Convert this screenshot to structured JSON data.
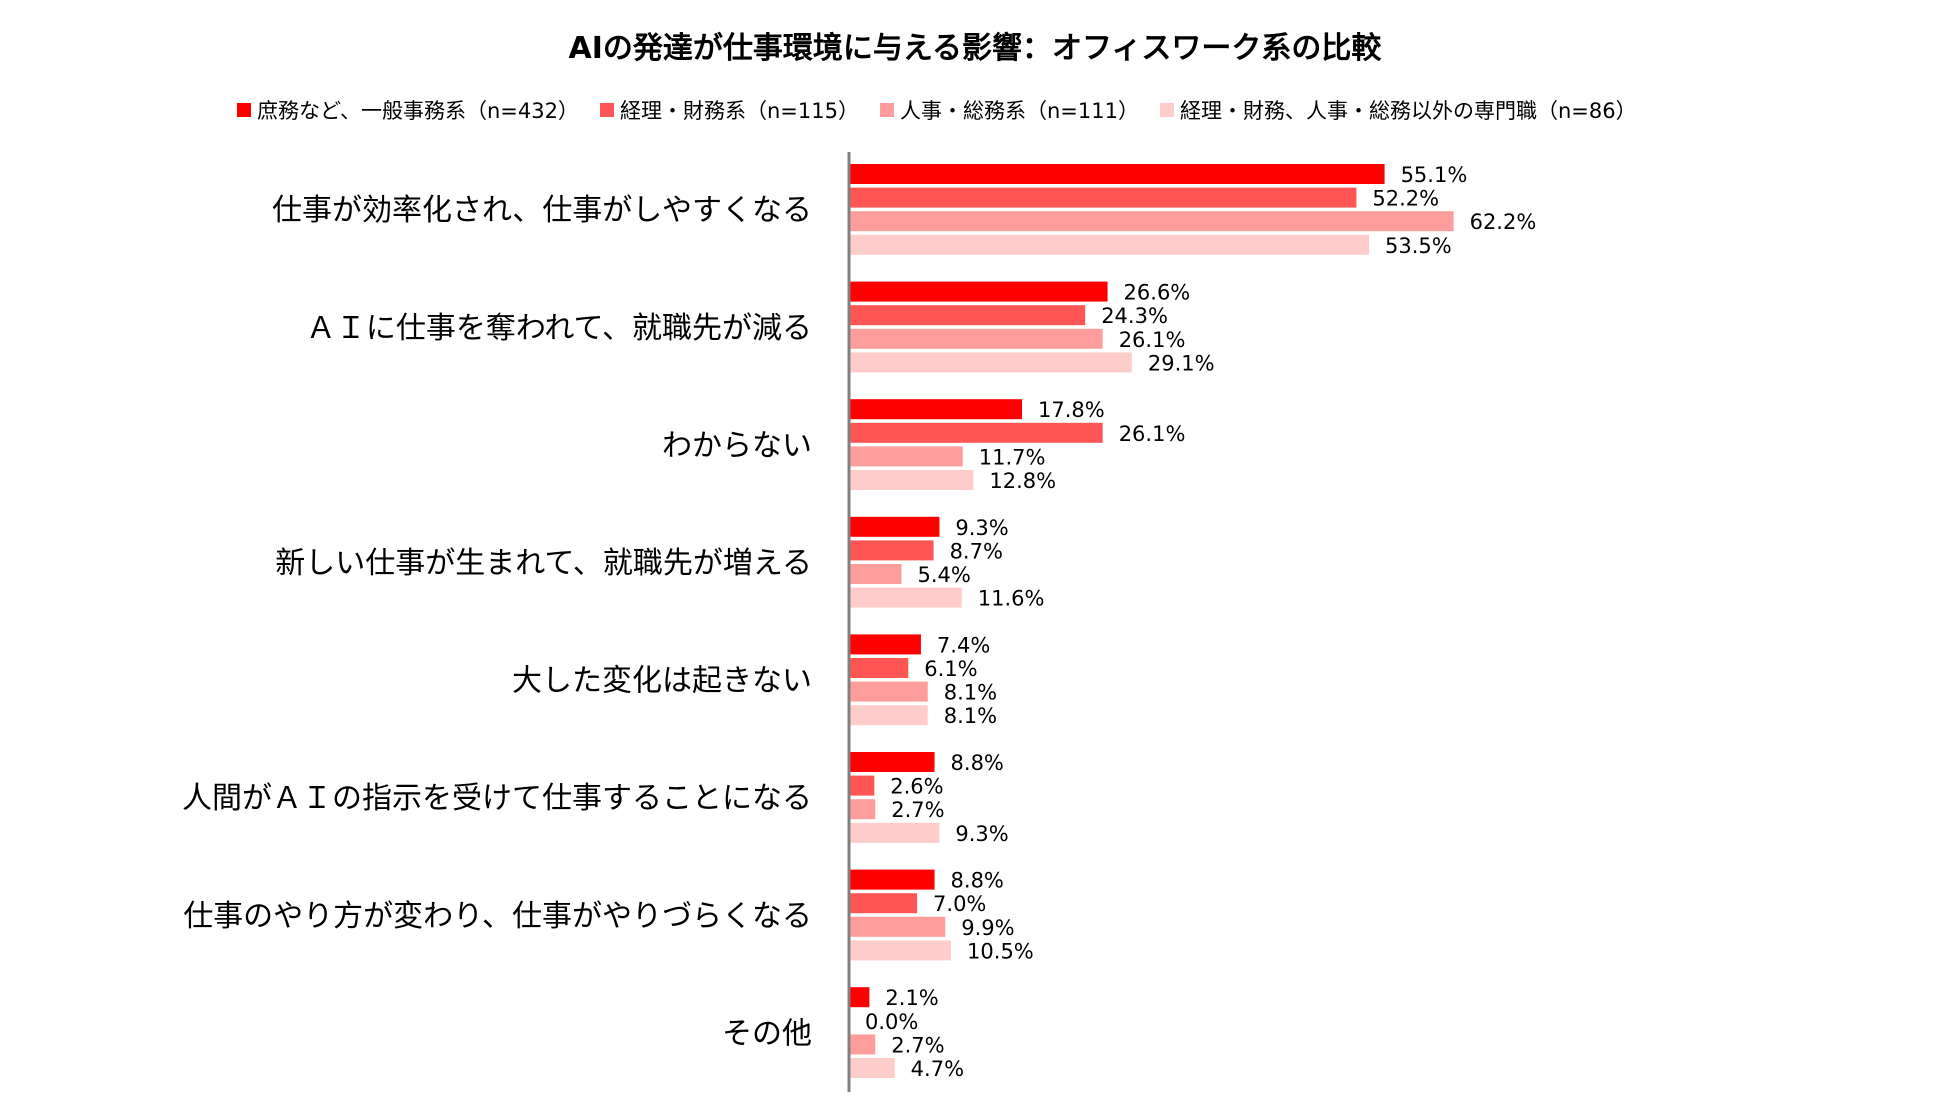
{
  "chart_data": {
    "type": "bar",
    "orientation": "horizontal",
    "title": "AIの発達が仕事環境に与える影響：オフィスワーク系の比較",
    "xlim": [
      0,
      70
    ],
    "grid": false,
    "legend_position": "top",
    "categories": [
      "仕事が効率化され、仕事がしやすくなる",
      "ＡＩに仕事を奪われて、就職先が減る",
      "わからない",
      "新しい仕事が生まれて、就職先が増える",
      "大した変化は起きない",
      "人間がＡＩの指示を受けて仕事することになる",
      "仕事のやり方が変わり、仕事がやりづらくなる",
      "その他"
    ],
    "series": [
      {
        "name": "庶務など、一般事務系（n=432）",
        "color": "#ff0000",
        "values": [
          55.1,
          26.6,
          17.8,
          9.3,
          7.4,
          8.8,
          8.8,
          2.1
        ],
        "labels": [
          "55.1%",
          "26.6%",
          "17.8%",
          "9.3%",
          "7.4%",
          "8.8%",
          "8.8%",
          "2.1%"
        ]
      },
      {
        "name": "経理・財務系（n=115）",
        "color": "#ff5555",
        "values": [
          52.2,
          24.3,
          26.1,
          8.7,
          6.1,
          2.6,
          7.0,
          0.0
        ],
        "labels": [
          "52.2%",
          "24.3%",
          "26.1%",
          "8.7%",
          "6.1%",
          "2.6%",
          "7.0%",
          "0.0%"
        ]
      },
      {
        "name": "人事・総務系（n=111）",
        "color": "#ff9c9c",
        "values": [
          62.2,
          26.1,
          11.7,
          5.4,
          8.1,
          2.7,
          9.9,
          2.7
        ],
        "labels": [
          "62.2%",
          "26.1%",
          "11.7%",
          "5.4%",
          "8.1%",
          "2.7%",
          "9.9%",
          "2.7%"
        ]
      },
      {
        "name": "経理・財務、人事・総務以外の専門職（n=86）",
        "color": "#ffcccc",
        "values": [
          53.5,
          29.1,
          12.8,
          11.6,
          8.1,
          9.3,
          10.5,
          4.7
        ],
        "labels": [
          "53.5%",
          "29.1%",
          "12.8%",
          "11.6%",
          "8.1%",
          "9.3%",
          "10.5%",
          "4.7%"
        ]
      }
    ]
  }
}
